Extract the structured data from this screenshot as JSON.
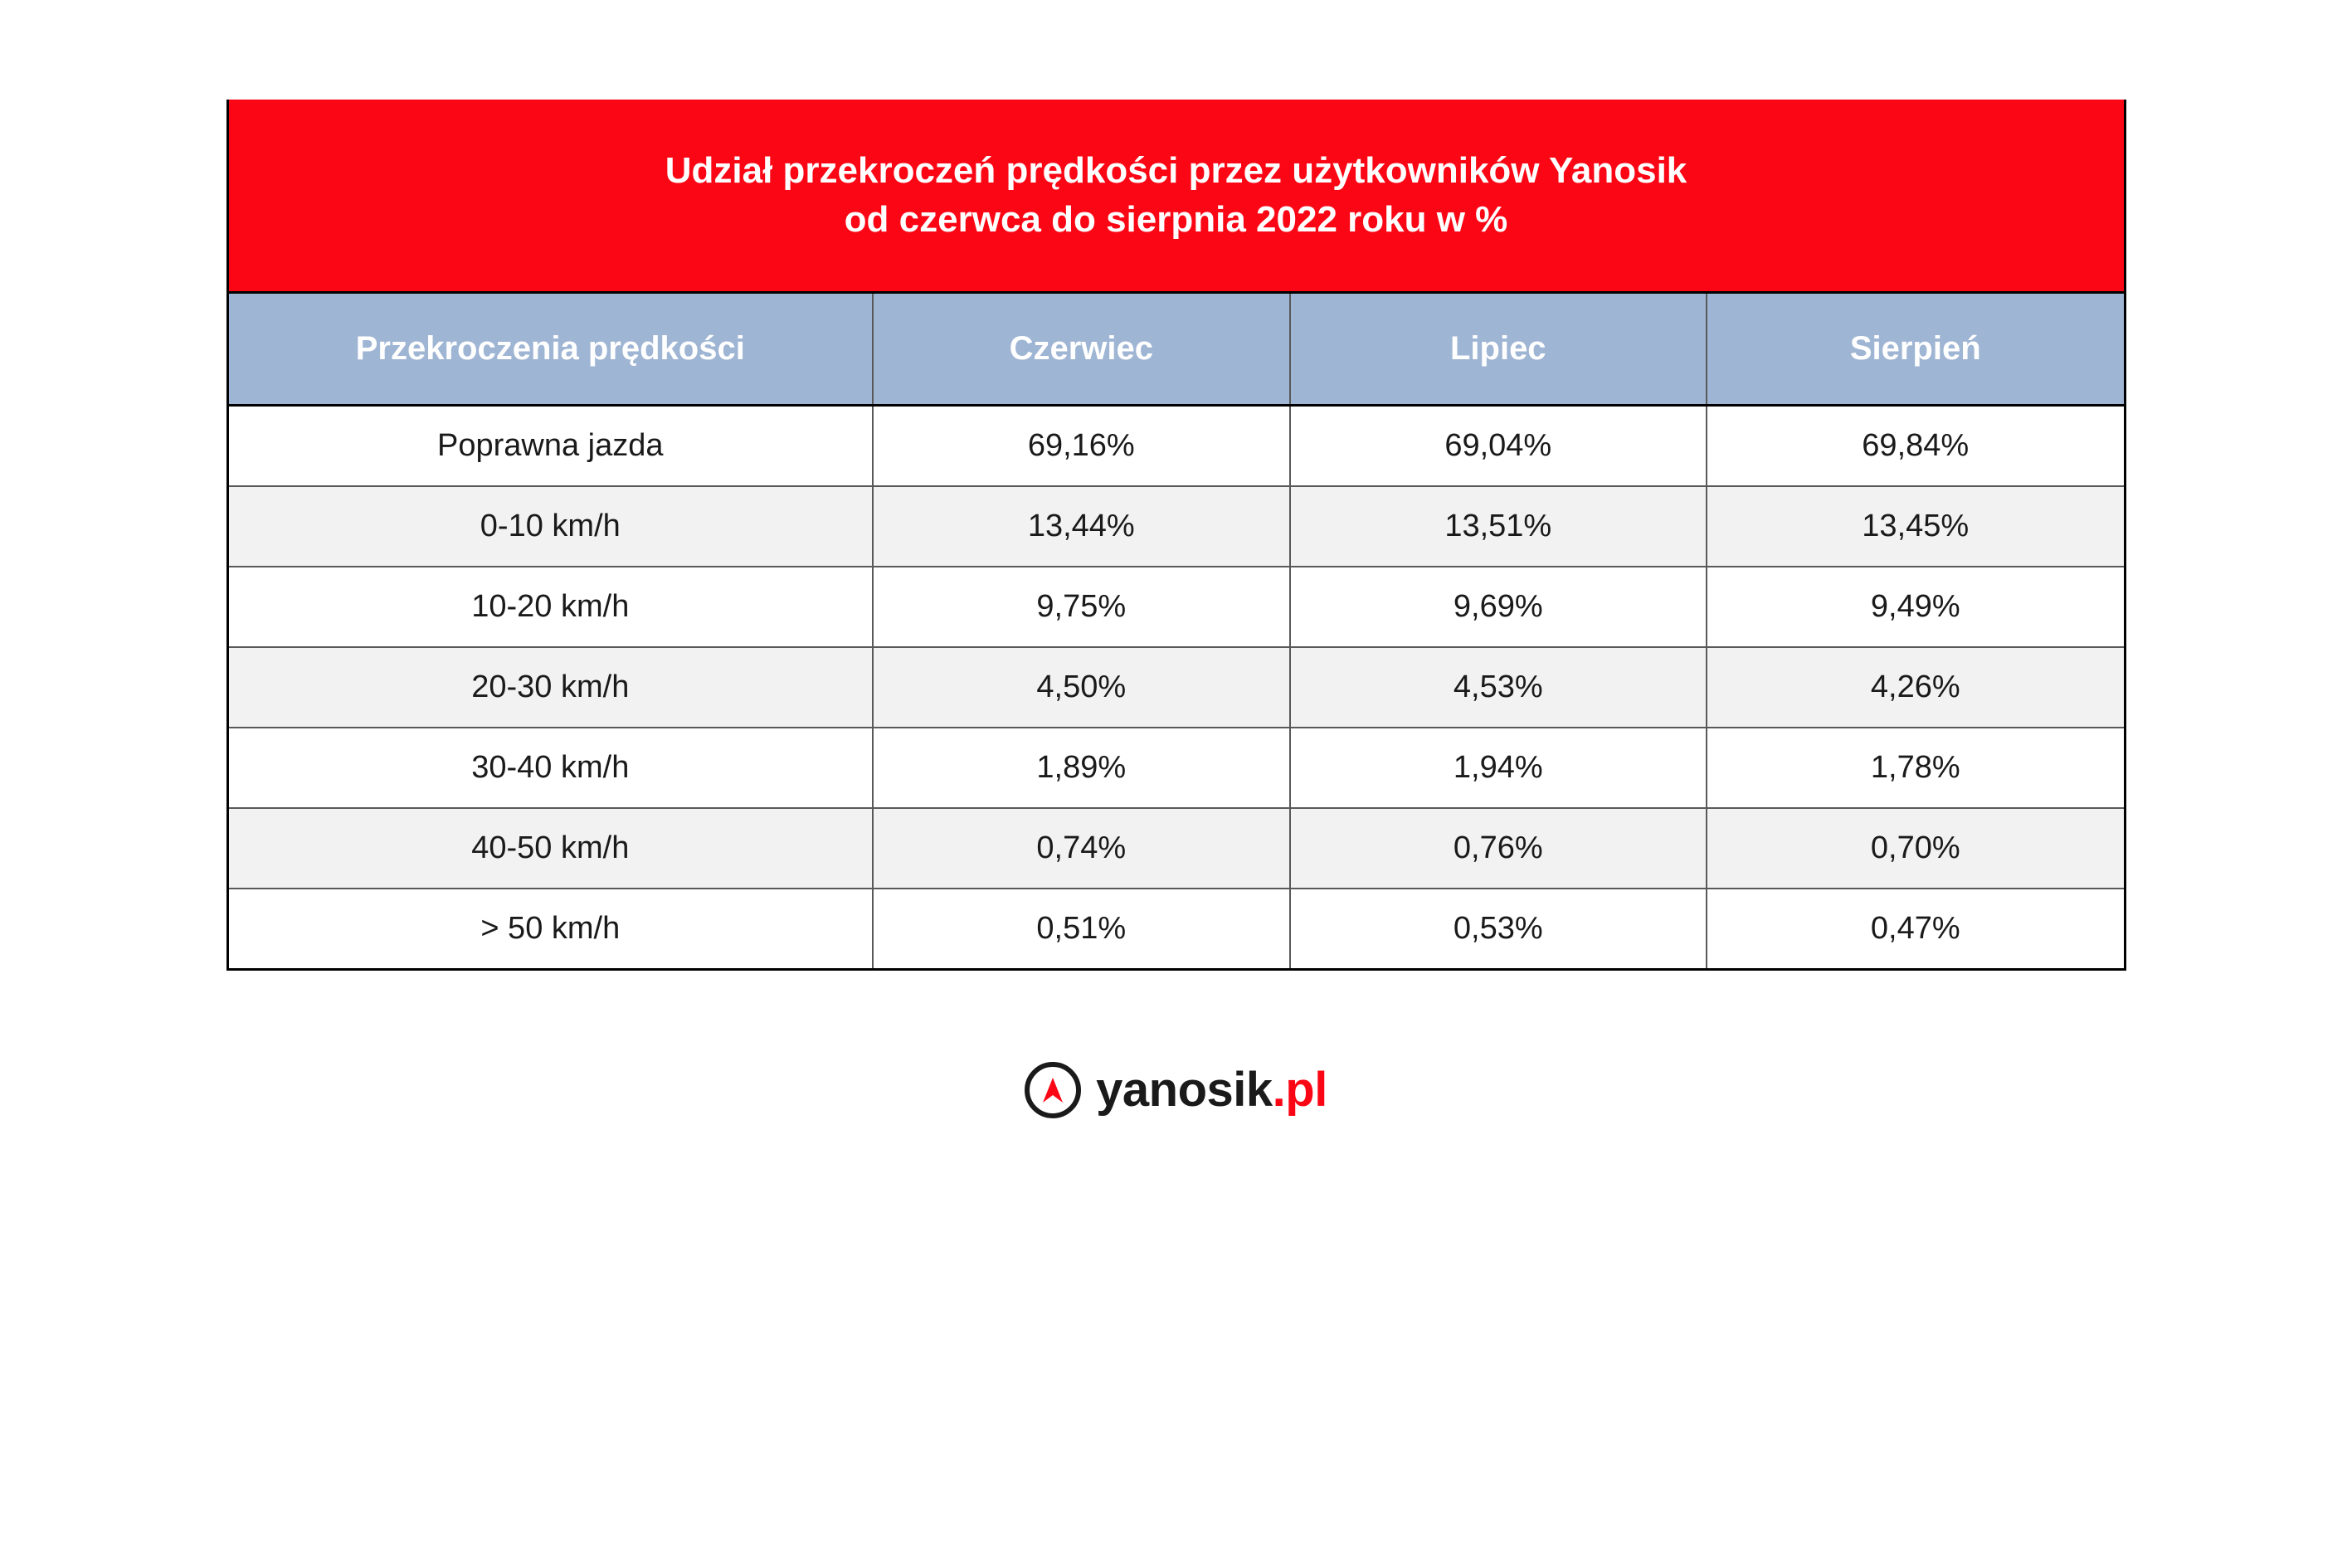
{
  "title": {
    "line1": "Udział przekroczeń prędkości przez użytkowników Yanosik",
    "line2": "od czerwca do sierpnia 2022 roku w %"
  },
  "table": {
    "type": "table",
    "columns": [
      {
        "key": "label",
        "header": "Przekroczenia prędkości",
        "width_pct": 34,
        "align": "center"
      },
      {
        "key": "m1",
        "header": "Czerwiec",
        "width_pct": 22,
        "align": "center"
      },
      {
        "key": "m2",
        "header": "Lipiec",
        "width_pct": 22,
        "align": "center"
      },
      {
        "key": "m3",
        "header": "Sierpień",
        "width_pct": 22,
        "align": "center"
      }
    ],
    "rows": [
      {
        "label": "Poprawna jazda",
        "m1": "69,16%",
        "m2": "69,04%",
        "m3": "69,84%"
      },
      {
        "label": "0-10 km/h",
        "m1": "13,44%",
        "m2": "13,51%",
        "m3": "13,45%"
      },
      {
        "label": "10-20 km/h",
        "m1": "9,75%",
        "m2": "9,69%",
        "m3": "9,49%"
      },
      {
        "label": "20-30 km/h",
        "m1": "4,50%",
        "m2": "4,53%",
        "m3": "4,26%"
      },
      {
        "label": "30-40 km/h",
        "m1": "1,89%",
        "m2": "1,94%",
        "m3": "1,78%"
      },
      {
        "label": "40-50 km/h",
        "m1": "0,74%",
        "m2": "0,76%",
        "m3": "0,70%"
      },
      {
        "label": "> 50 km/h",
        "m1": "0,51%",
        "m2": "0,53%",
        "m3": "0,47%"
      }
    ],
    "row_alt_bg": "#f2f2f2",
    "header_bg": "#9fb5d4",
    "header_fg": "#ffffff",
    "cell_fg": "#1a1a1a",
    "border_color": "#595959",
    "outer_border_color": "#000000",
    "title_bg": "#fb0615",
    "title_fg": "#ffffff",
    "title_fontsize": 44,
    "header_fontsize": 40,
    "cell_fontsize": 38
  },
  "logo": {
    "brand": "yanosik",
    "tld": ".pl",
    "brand_color": "#1a1a1a",
    "tld_color": "#fb0615",
    "arrow_color": "#fb0615"
  }
}
